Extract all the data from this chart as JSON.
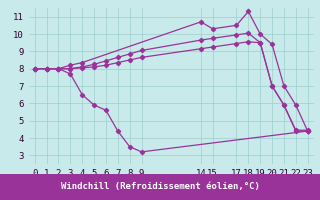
{
  "xlabel": "Windchill (Refroidissement éolien,°C)",
  "background_color": "#c8eaea",
  "line_color": "#993399",
  "xlim": [
    -0.5,
    23.5
  ],
  "ylim": [
    2.5,
    11.5
  ],
  "yticks": [
    3,
    4,
    5,
    6,
    7,
    8,
    9,
    10,
    11
  ],
  "xticks": [
    0,
    1,
    2,
    3,
    4,
    5,
    6,
    7,
    8,
    9,
    14,
    15,
    17,
    18,
    19,
    20,
    21,
    22,
    23
  ],
  "line1_x": [
    0,
    1,
    2,
    3,
    4,
    14,
    15,
    17,
    18,
    19,
    20,
    21,
    22,
    23
  ],
  "line1_y": [
    8.0,
    8.0,
    8.0,
    8.2,
    8.35,
    10.7,
    10.3,
    10.5,
    11.3,
    10.0,
    9.4,
    7.0,
    5.9,
    4.4
  ],
  "line2_x": [
    0,
    1,
    2,
    3,
    4,
    5,
    6,
    7,
    8,
    9,
    14,
    15,
    17,
    18,
    19,
    20,
    21,
    22,
    23
  ],
  "line2_y": [
    8.0,
    8.0,
    8.0,
    8.0,
    8.1,
    8.25,
    8.45,
    8.65,
    8.85,
    9.05,
    9.65,
    9.75,
    9.95,
    10.05,
    9.5,
    7.0,
    5.9,
    4.45,
    4.45
  ],
  "line3_x": [
    0,
    1,
    2,
    3,
    4,
    5,
    6,
    7,
    8,
    9,
    14,
    15,
    17,
    18,
    19,
    20,
    21,
    22,
    23
  ],
  "line3_y": [
    8.0,
    8.0,
    8.0,
    8.0,
    8.05,
    8.1,
    8.2,
    8.35,
    8.5,
    8.65,
    9.15,
    9.25,
    9.45,
    9.55,
    9.5,
    7.0,
    5.9,
    4.4,
    4.4
  ],
  "line4_x": [
    0,
    1,
    2,
    3,
    4,
    5,
    6,
    7,
    8,
    9,
    23
  ],
  "line4_y": [
    8.0,
    8.0,
    8.0,
    7.7,
    6.5,
    5.9,
    5.6,
    4.4,
    3.5,
    3.2,
    4.4
  ],
  "grid_color": "#9ecece",
  "tick_fontsize": 6.5,
  "label_fontsize": 6.5,
  "label_bg": "#993399"
}
